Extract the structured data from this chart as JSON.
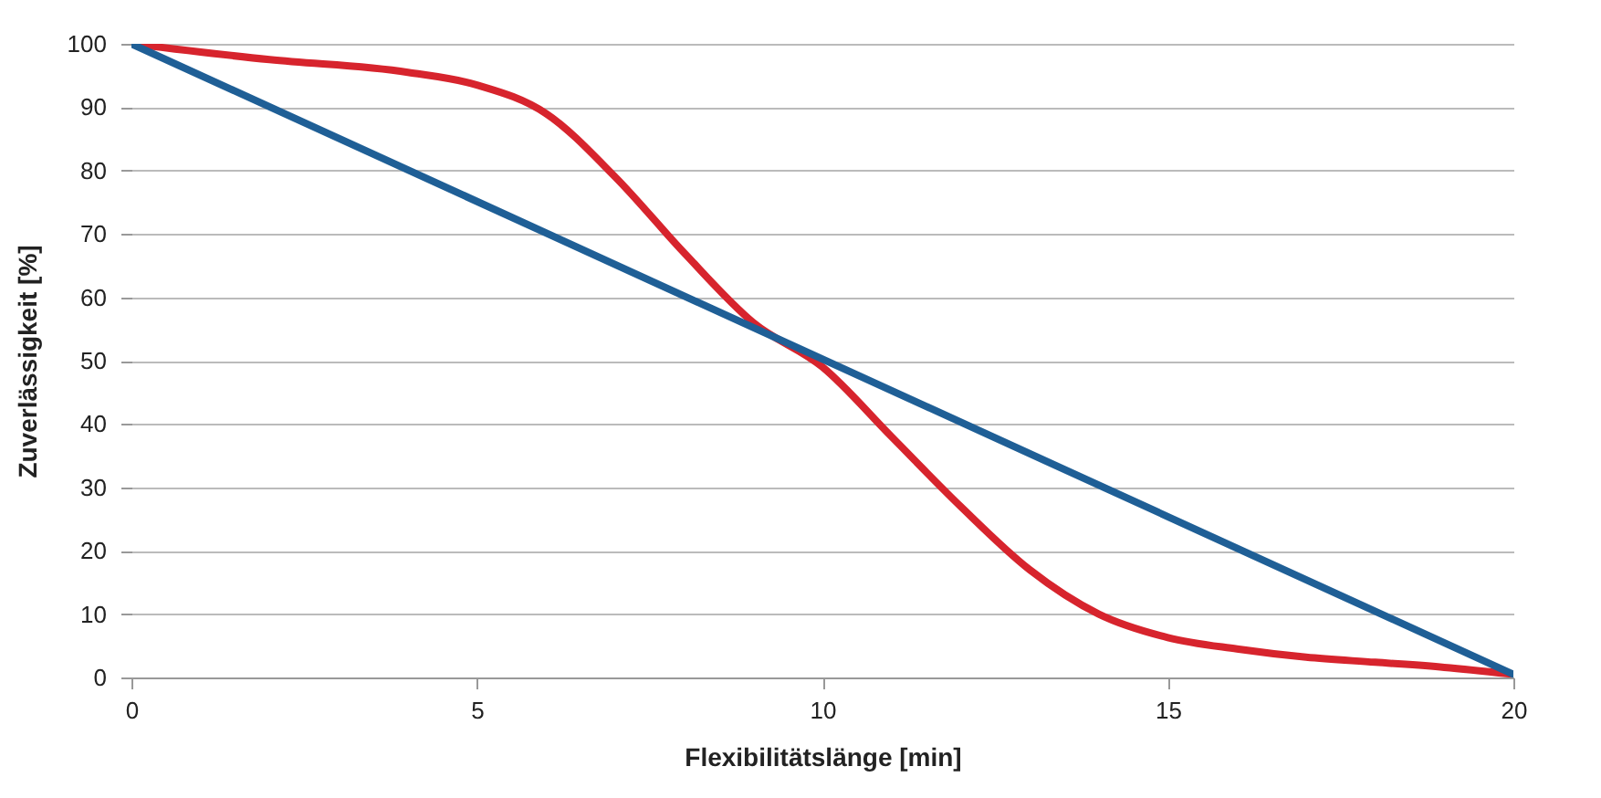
{
  "chart_data": {
    "type": "line",
    "xlabel": "Flexibilitätslänge [min]",
    "ylabel": "Zuverlässigkeit [%]",
    "xlim": [
      0,
      20
    ],
    "xticks": [
      0,
      5,
      10,
      15,
      20
    ],
    "ylim": [
      0,
      100
    ],
    "yticks": [
      0,
      10,
      20,
      30,
      40,
      50,
      60,
      70,
      80,
      90,
      100
    ],
    "grid": "y",
    "marker": "none",
    "line_style": "solid",
    "series": [
      {
        "color": "#d7242d",
        "x": [
          0,
          2,
          4,
          5,
          6,
          7,
          8,
          9,
          10,
          11,
          12,
          13,
          14,
          15,
          16,
          17,
          18,
          19,
          20
        ],
        "values": [
          100,
          97.5,
          95.5,
          93.5,
          89,
          79,
          67,
          56,
          49,
          38,
          27,
          17,
          10,
          6.3,
          4.5,
          3.2,
          2.4,
          1.6,
          0.5
        ]
      },
      {
        "color": "#1f5f96",
        "x": [
          0,
          20
        ],
        "values": [
          100,
          0.5
        ]
      }
    ]
  }
}
